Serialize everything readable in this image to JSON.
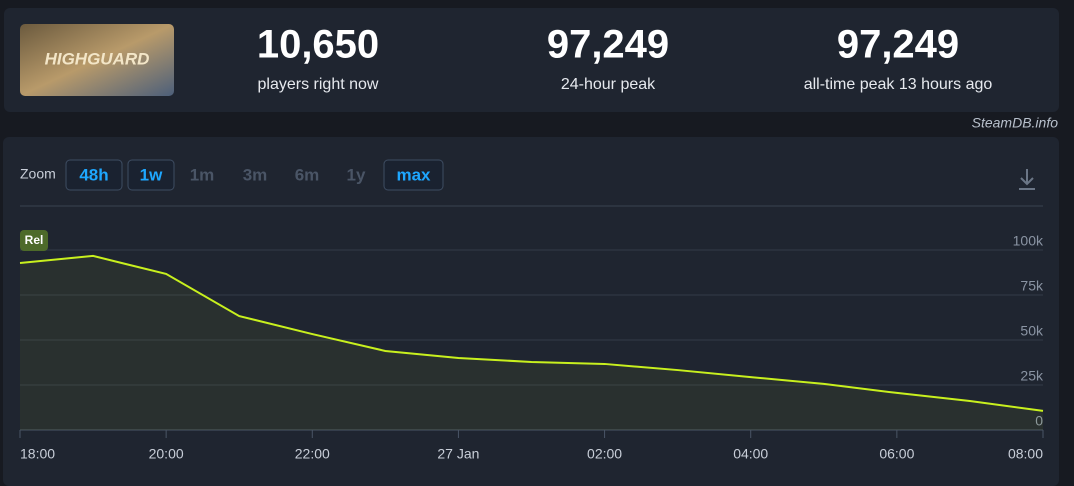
{
  "header": {
    "thumbnail_text": "HIGHGUARD",
    "stats": [
      {
        "value": "10,650",
        "label": "players right now"
      },
      {
        "value": "97,249",
        "label": "24-hour peak"
      },
      {
        "value": "97,249",
        "label": "all-time peak 13 hours ago"
      }
    ],
    "credit": "SteamDB.info"
  },
  "zoom": {
    "label": "Zoom",
    "options": [
      {
        "label": "48h",
        "active": true
      },
      {
        "label": "1w",
        "active": true
      },
      {
        "label": "1m",
        "active": false
      },
      {
        "label": "3m",
        "active": false
      },
      {
        "label": "6m",
        "active": false
      },
      {
        "label": "1y",
        "active": false
      },
      {
        "label": "max",
        "active": true
      }
    ]
  },
  "chart_data": {
    "type": "line",
    "annotation": "Rel",
    "x": [
      0,
      1,
      2,
      3,
      4,
      5,
      6,
      7,
      8,
      9,
      10,
      11,
      12,
      13,
      14
    ],
    "series": [
      {
        "name": "Players",
        "color": "#c8f01e",
        "values": [
          92800,
          96700,
          86700,
          63300,
          53300,
          43900,
          40000,
          37800,
          36700,
          33300,
          29400,
          25600,
          20600,
          16100,
          10650
        ]
      }
    ],
    "xlim": [
      0,
      14
    ],
    "xticks": [
      {
        "value": 0,
        "label": "18:00"
      },
      {
        "value": 2,
        "label": "20:00"
      },
      {
        "value": 4,
        "label": "22:00"
      },
      {
        "value": 6,
        "label": "27 Jan"
      },
      {
        "value": 8,
        "label": "02:00"
      },
      {
        "value": 10,
        "label": "04:00"
      },
      {
        "value": 12,
        "label": "06:00"
      },
      {
        "value": 14,
        "label": "08:00"
      }
    ],
    "ylim": [
      0,
      100000
    ],
    "yticks": [
      0,
      {
        "value": 25000,
        "label": "25k"
      },
      {
        "value": 50000,
        "label": "50k"
      },
      {
        "value": 75000,
        "label": "75k"
      },
      {
        "value": 100000,
        "label": "100k"
      }
    ],
    "grid": true
  }
}
